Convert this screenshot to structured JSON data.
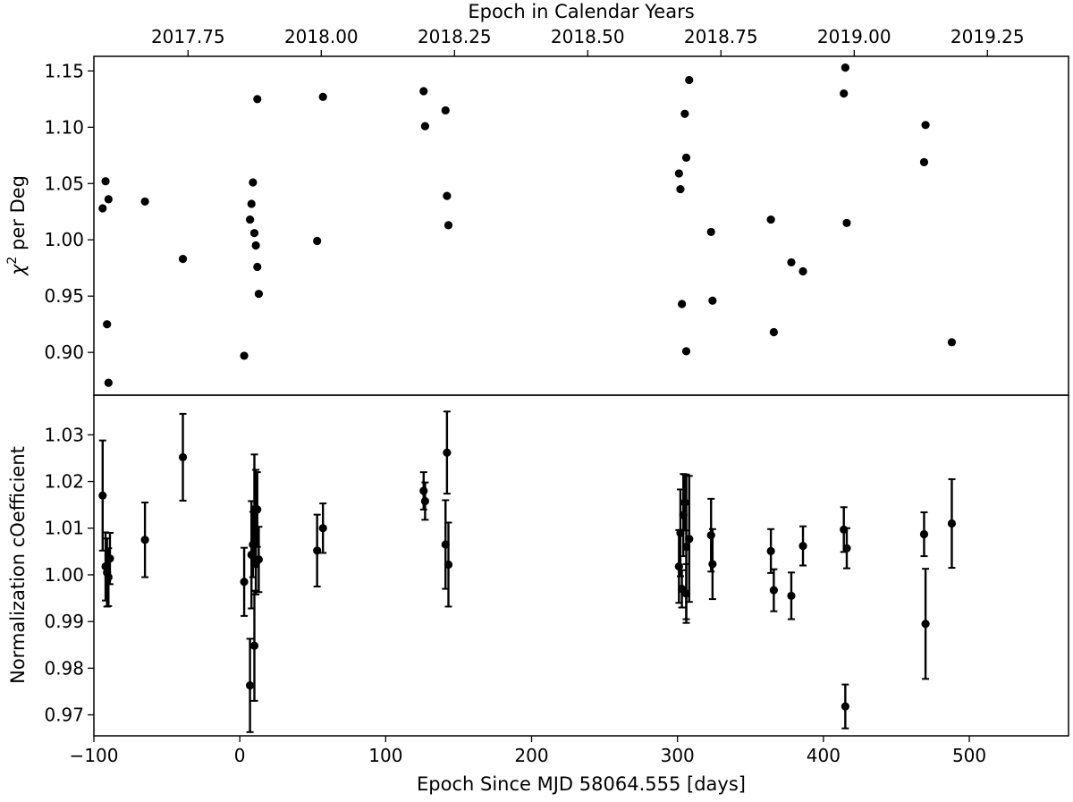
{
  "chart_data": [
    {
      "type": "scatter",
      "panel": "top",
      "ylabel": "χ² per Deg",
      "ylabel_base": "χ",
      "ylabel_sup": "2",
      "ylabel_rest": " per Deg",
      "top_axis_label": "Epoch in Calendar Years",
      "top_ticks": [
        {
          "value": 2017.75,
          "label": "2017.75"
        },
        {
          "value": 2018.0,
          "label": "2018.00"
        },
        {
          "value": 2018.25,
          "label": "2018.25"
        },
        {
          "value": 2018.5,
          "label": "2018.50"
        },
        {
          "value": 2018.75,
          "label": "2018.75"
        },
        {
          "value": 2019.0,
          "label": "2019.00"
        },
        {
          "value": 2019.25,
          "label": "2019.25"
        }
      ],
      "year_at_x0": 2017.8471,
      "days_per_year": 365.25,
      "xlim": [
        -100,
        568
      ],
      "ylim": [
        0.862,
        1.163
      ],
      "yticks": [
        0.9,
        0.95,
        1.0,
        1.05,
        1.1,
        1.15
      ],
      "ytick_labels": [
        "0.90",
        "0.95",
        "1.00",
        "1.05",
        "1.10",
        "1.15"
      ],
      "grid": false,
      "x": [
        -94,
        -92,
        -91,
        -90,
        -90,
        -65,
        -39,
        3,
        7,
        8,
        9,
        10,
        11,
        12,
        12,
        13,
        53,
        57,
        126,
        127,
        141,
        142,
        143,
        301,
        302,
        303,
        305,
        306,
        306,
        308,
        323,
        324,
        364,
        366,
        378,
        386,
        414,
        415,
        416,
        469,
        470,
        488
      ],
      "y": [
        1.028,
        1.052,
        0.925,
        1.036,
        0.873,
        1.034,
        0.983,
        0.897,
        1.018,
        1.032,
        1.051,
        1.006,
        0.995,
        0.976,
        1.125,
        0.952,
        0.999,
        1.127,
        1.132,
        1.101,
        1.115,
        1.039,
        1.013,
        1.059,
        1.045,
        0.943,
        1.112,
        1.073,
        0.901,
        1.142,
        1.007,
        0.946,
        1.018,
        0.918,
        0.98,
        0.972,
        1.13,
        1.153,
        1.015,
        1.069,
        1.102,
        0.909
      ]
    },
    {
      "type": "scatter",
      "panel": "bottom",
      "xlabel": "Epoch Since MJD 58064.555 [days]",
      "ylabel": "Normalization cOefficient",
      "xlim": [
        -100,
        568
      ],
      "xticks": [
        -100,
        0,
        100,
        200,
        300,
        400,
        500
      ],
      "xtick_labels": [
        "−100",
        "0",
        "100",
        "200",
        "300",
        "400",
        "500"
      ],
      "ylim": [
        0.9655,
        1.0385
      ],
      "yticks": [
        0.97,
        0.98,
        0.99,
        1.0,
        1.01,
        1.02,
        1.03
      ],
      "ytick_labels": [
        "0.97",
        "0.98",
        "0.99",
        "1.00",
        "1.01",
        "1.02",
        "1.03"
      ],
      "grid": false,
      "error_bars": true,
      "x": [
        -94,
        -92,
        -91,
        -90,
        -89,
        -65,
        -39,
        3,
        7,
        8,
        9,
        10,
        10,
        11,
        11,
        12,
        13,
        53,
        57,
        126,
        127,
        141,
        142,
        143,
        301,
        302,
        303,
        304,
        305,
        306,
        306,
        308,
        323,
        324,
        364,
        366,
        378,
        386,
        414,
        415,
        416,
        469,
        470,
        488
      ],
      "y": [
        1.017,
        1.0018,
        1.0005,
        0.9995,
        1.0035,
        1.0075,
        1.0252,
        0.9985,
        0.9763,
        1.0043,
        1.0065,
        1.014,
        0.9848,
        1.0023,
        1.0095,
        1.014,
        1.0033,
        1.0052,
        1.01,
        1.018,
        1.0158,
        1.0065,
        1.0262,
        1.0022,
        1.0018,
        1.009,
        0.997,
        1.0128,
        1.0155,
        1.006,
        0.996,
        1.0077,
        1.0085,
        1.0023,
        1.0051,
        0.9967,
        0.9955,
        1.0062,
        1.0097,
        0.9718,
        1.0057,
        1.0087,
        0.9895,
        1.011
      ],
      "yerr": [
        0.0118,
        0.0073,
        0.0073,
        0.0062,
        0.0055,
        0.008,
        0.0093,
        0.0073,
        0.01,
        0.0115,
        0.007,
        0.0118,
        0.0118,
        0.0065,
        0.013,
        0.008,
        0.007,
        0.0077,
        0.0053,
        0.004,
        0.004,
        0.0095,
        0.0088,
        0.009,
        0.0078,
        0.0093,
        0.004,
        0.0088,
        0.006,
        0.0155,
        0.0063,
        0.0135,
        0.0078,
        0.0075,
        0.0047,
        0.0045,
        0.005,
        0.0042,
        0.0048,
        0.0047,
        0.0043,
        0.0047,
        0.0118,
        0.0095
      ]
    }
  ],
  "colors": {
    "marker": "#000000",
    "axes": "#000000",
    "background": "#ffffff"
  }
}
